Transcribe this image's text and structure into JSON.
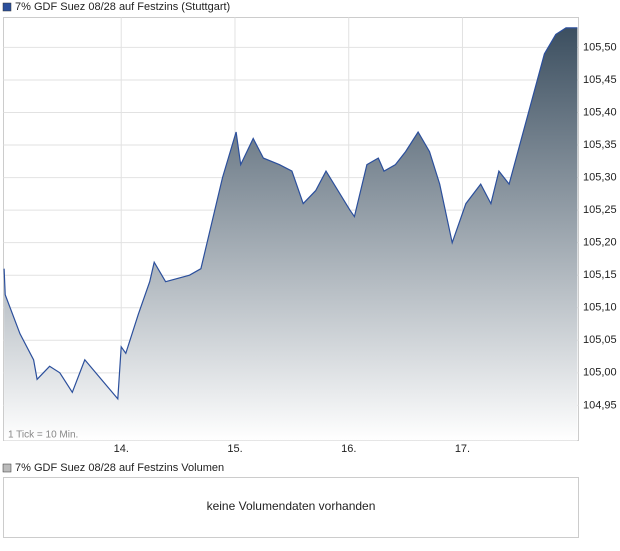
{
  "chart_data": {
    "type": "line",
    "title": "7% GDF Suez 08/28 auf Festzins (Stuttgart)",
    "note": "1 Tick = 10 Min.",
    "series": [
      {
        "name": "7% GDF Suez 08/28 auf Festzins",
        "color": "#2b4f9c",
        "x": [
          12.97,
          12.98,
          13.11,
          13.23,
          13.26,
          13.37,
          13.46,
          13.57,
          13.68,
          13.97,
          14.0,
          14.04,
          14.15,
          14.25,
          14.29,
          14.39,
          14.6,
          14.7,
          14.89,
          15.01,
          15.05,
          15.16,
          15.25,
          15.39,
          15.5,
          15.6,
          15.71,
          15.8,
          16.01,
          16.05,
          16.16,
          16.26,
          16.31,
          16.41,
          16.5,
          16.61,
          16.71,
          16.8,
          16.91,
          17.03,
          17.16,
          17.25,
          17.32,
          17.41,
          17.72,
          17.82,
          17.91,
          18.01
        ],
        "values": [
          105.16,
          105.12,
          105.06,
          105.02,
          104.99,
          105.01,
          105.0,
          104.97,
          105.02,
          104.96,
          105.04,
          105.03,
          105.09,
          105.14,
          105.17,
          105.14,
          105.15,
          105.16,
          105.3,
          105.37,
          105.32,
          105.36,
          105.33,
          105.32,
          105.31,
          105.26,
          105.28,
          105.31,
          105.25,
          105.24,
          105.32,
          105.33,
          105.31,
          105.32,
          105.34,
          105.37,
          105.34,
          105.29,
          105.2,
          105.26,
          105.29,
          105.26,
          105.31,
          105.29,
          105.49,
          105.52,
          105.53,
          105.53
        ]
      }
    ],
    "xlim": [
      12.965,
      18.02
    ],
    "xticks": [
      {
        "value": 14,
        "label": "14."
      },
      {
        "value": 15,
        "label": "15."
      },
      {
        "value": 16,
        "label": "16."
      },
      {
        "value": 17,
        "label": "17."
      }
    ],
    "ylim": [
      104.896,
      105.546
    ],
    "yticks": [
      {
        "value": 104.95,
        "label": "104,95"
      },
      {
        "value": 105.0,
        "label": "105,00"
      },
      {
        "value": 105.05,
        "label": "105,05"
      },
      {
        "value": 105.1,
        "label": "105,10"
      },
      {
        "value": 105.15,
        "label": "105,15"
      },
      {
        "value": 105.2,
        "label": "105,20"
      },
      {
        "value": 105.25,
        "label": "105,25"
      },
      {
        "value": 105.3,
        "label": "105,30"
      },
      {
        "value": 105.35,
        "label": "105,35"
      },
      {
        "value": 105.4,
        "label": "105,40"
      },
      {
        "value": 105.45,
        "label": "105,45"
      },
      {
        "value": 105.5,
        "label": "105,50"
      }
    ],
    "grid": true
  },
  "volume_panel": {
    "title": "7% GDF Suez 08/28 auf Festzins Volumen",
    "message": "keine Volumendaten vorhanden"
  }
}
